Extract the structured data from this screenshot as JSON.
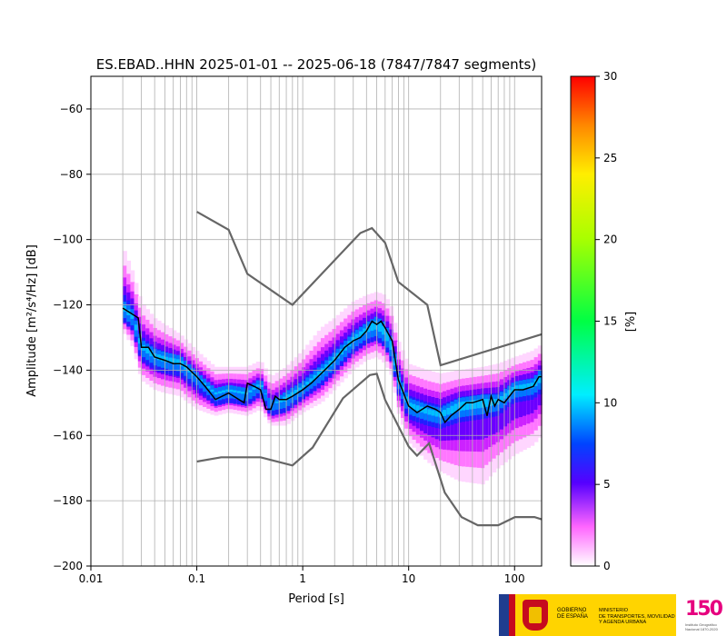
{
  "chart_data": {
    "type": "heatmap",
    "title": "ES.EBAD..HHN   2025-01-01 -- 2025-06-18  (7847/7847 segments)",
    "xlabel": "Period [s]",
    "ylabel": "Amplitude [m²/s⁴/Hz] [dB]",
    "xscale": "log",
    "xlim": [
      0.01,
      180
    ],
    "ylim": [
      -200,
      -50
    ],
    "x_ticks": [
      0.01,
      0.1,
      1,
      10,
      100
    ],
    "x_tick_labels": [
      "0.01",
      "0.1",
      "1",
      "10",
      "100"
    ],
    "y_ticks": [
      -200,
      -180,
      -160,
      -140,
      -120,
      -100,
      -80,
      -60
    ],
    "y_tick_labels": [
      "−200",
      "−180",
      "−160",
      "−140",
      "−120",
      "−100",
      "−80",
      "−60"
    ],
    "grid": true,
    "colorbar": {
      "label": "[%]",
      "min": 0,
      "max": 30,
      "ticks": [
        0,
        5,
        10,
        15,
        20,
        25,
        30
      ],
      "tick_labels": [
        "0",
        "5",
        "10",
        "15",
        "20",
        "25",
        "30"
      ]
    },
    "density_band": {
      "period": [
        0.02,
        0.025,
        0.03,
        0.04,
        0.05,
        0.07,
        0.1,
        0.15,
        0.2,
        0.3,
        0.4,
        0.5,
        0.7,
        1,
        1.5,
        2,
        3,
        4,
        5,
        6,
        7,
        8,
        10,
        15,
        20,
        30,
        50,
        70,
        100,
        150,
        180
      ],
      "center": [
        -121,
        -124,
        -133,
        -136,
        -137,
        -138,
        -143,
        -148,
        -147,
        -148,
        -145,
        -152,
        -149,
        -146,
        -141,
        -137,
        -131,
        -128,
        -126,
        -128,
        -133,
        -143,
        -151,
        -153,
        -154,
        -151,
        -150,
        -150,
        -146,
        -145,
        -142
      ],
      "upper": [
        -102,
        -110,
        -119,
        -124,
        -126,
        -129,
        -134,
        -139,
        -139,
        -139,
        -137,
        -142,
        -139,
        -134,
        -127,
        -124,
        -119,
        -117,
        -116,
        -117,
        -121,
        -131,
        -138,
        -140,
        -141,
        -140,
        -139,
        -138,
        -136,
        -134,
        -132
      ],
      "lower": [
        -128,
        -133,
        -143,
        -146,
        -147,
        -148,
        -152,
        -154,
        -153,
        -154,
        -152,
        -157,
        -157,
        -153,
        -150,
        -146,
        -140,
        -137,
        -136,
        -138,
        -142,
        -153,
        -162,
        -168,
        -171,
        -174,
        -175,
        -170,
        -166,
        -163,
        -160
      ],
      "core": [
        -125,
        -128,
        -137,
        -140,
        -141,
        -142,
        -146,
        -151,
        -150,
        -151,
        -148,
        -154,
        -153,
        -149,
        -145,
        -141,
        -135,
        -132,
        -131,
        -133,
        -138,
        -147,
        -155,
        -157,
        -158,
        -156,
        -155,
        -154,
        -150,
        -149,
        -147
      ]
    },
    "series": [
      {
        "x": [
          0.02,
          0.025,
          0.028,
          0.03,
          0.035,
          0.04,
          0.05,
          0.06,
          0.07,
          0.08,
          0.1,
          0.12,
          0.15,
          0.2,
          0.25,
          0.28,
          0.3,
          0.35,
          0.4,
          0.45,
          0.5,
          0.55,
          0.6,
          0.7,
          0.8,
          1,
          1.2,
          1.5,
          2,
          2.5,
          3,
          3.5,
          4,
          4.5,
          5,
          5.5,
          6,
          7,
          8,
          10,
          12,
          15,
          18,
          20,
          22,
          25,
          30,
          35,
          40,
          50,
          55,
          60,
          65,
          70,
          80,
          100,
          120,
          150,
          170,
          180
        ],
        "y": [
          -121,
          -123,
          -124,
          -133,
          -133,
          -136,
          -137,
          -138,
          -138,
          -139,
          -142,
          -145,
          -149,
          -147,
          -149,
          -150,
          -144,
          -145,
          -146,
          -152,
          -152,
          -148,
          -149,
          -149,
          -148,
          -146,
          -144,
          -141,
          -137,
          -133,
          -131,
          -130,
          -128,
          -125,
          -126,
          -125,
          -127,
          -131,
          -143,
          -151,
          -153,
          -151,
          -152,
          -153,
          -156,
          -154,
          -152,
          -150,
          -150,
          -149,
          -154,
          -148,
          -151,
          -149,
          -150,
          -146,
          -146,
          -145,
          -142,
          -142
        ]
      },
      {
        "x": [
          0.1,
          0.2,
          0.3,
          0.8,
          3.5,
          4.5,
          6,
          8,
          15,
          20,
          180
        ],
        "y": [
          -91.5,
          -97,
          -110.5,
          -120,
          -98,
          -96.5,
          -101,
          -113,
          -120,
          -138.5,
          -129
        ]
      },
      {
        "x": [
          0.1,
          0.17,
          0.4,
          0.8,
          1.24,
          2.4,
          4.3,
          5,
          6,
          10,
          12,
          15.6,
          21.9,
          31.6,
          45,
          70,
          101,
          154,
          180
        ],
        "y": [
          -168,
          -166.7,
          -166.7,
          -169.2,
          -163.7,
          -148.6,
          -141.5,
          -141.1,
          -149.1,
          -163.4,
          -166.2,
          -162.4,
          -177.5,
          -185,
          -187.5,
          -187.5,
          -185,
          -185,
          -185.7
        ]
      }
    ]
  },
  "logos": {
    "gobierno_text": "GOBIERNO\nDE ESPAÑA",
    "ministerio_text": "MINISTERIO\nDE TRANSPORTES, MOVILIDAD\nY AGENDA URBANA",
    "ign_text": "150",
    "ign_sub": "Instituto Geográfico\nNacional 1870-2020"
  }
}
